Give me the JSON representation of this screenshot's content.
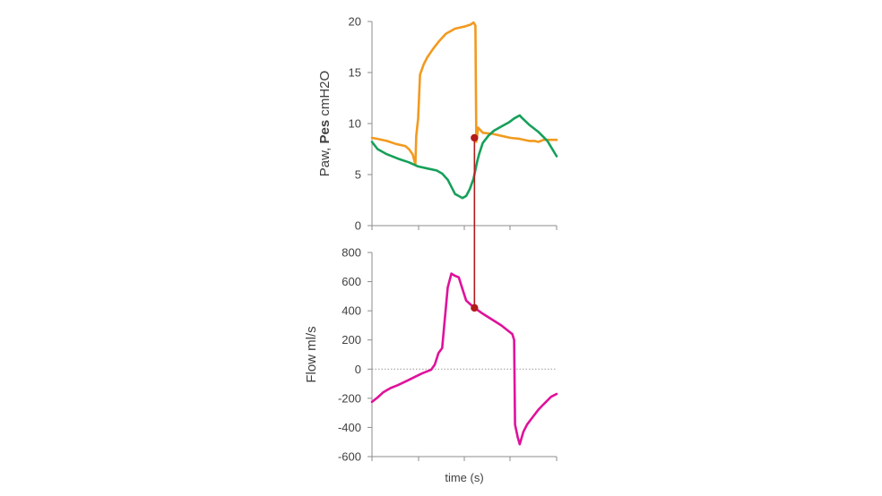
{
  "chart_data": [
    {
      "type": "line",
      "ylabel_parts": [
        {
          "text": "Paw, ",
          "bold": false
        },
        {
          "text": "Pes",
          "bold": true
        },
        {
          "text": " cmH2O",
          "bold": false
        }
      ],
      "ylim": [
        0,
        20
      ],
      "yticks": [
        0,
        5,
        10,
        15,
        20
      ],
      "xlim": [
        0,
        1
      ],
      "grid": false,
      "series": [
        {
          "color": "#F29A1F",
          "points": [
            [
              0.0,
              8.6
            ],
            [
              0.03,
              8.5
            ],
            [
              0.08,
              8.3
            ],
            [
              0.13,
              8.0
            ],
            [
              0.18,
              7.8
            ],
            [
              0.2,
              7.5
            ],
            [
              0.22,
              7.0
            ],
            [
              0.235,
              6.0
            ],
            [
              0.24,
              8.8
            ],
            [
              0.25,
              10.5
            ],
            [
              0.26,
              14.8
            ],
            [
              0.28,
              15.8
            ],
            [
              0.3,
              16.5
            ],
            [
              0.33,
              17.3
            ],
            [
              0.36,
              18.0
            ],
            [
              0.4,
              18.8
            ],
            [
              0.45,
              19.3
            ],
            [
              0.5,
              19.5
            ],
            [
              0.535,
              19.7
            ],
            [
              0.55,
              19.9
            ],
            [
              0.56,
              19.6
            ],
            [
              0.565,
              8.2
            ],
            [
              0.575,
              9.6
            ],
            [
              0.6,
              9.1
            ],
            [
              0.65,
              9.0
            ],
            [
              0.7,
              8.8
            ],
            [
              0.75,
              8.6
            ],
            [
              0.8,
              8.5
            ],
            [
              0.85,
              8.3
            ],
            [
              0.88,
              8.3
            ],
            [
              0.9,
              8.2
            ],
            [
              0.93,
              8.4
            ],
            [
              1.0,
              8.4
            ]
          ]
        },
        {
          "color": "#16A05A",
          "points": [
            [
              0.0,
              8.2
            ],
            [
              0.03,
              7.5
            ],
            [
              0.08,
              7.0
            ],
            [
              0.15,
              6.5
            ],
            [
              0.2,
              6.2
            ],
            [
              0.25,
              5.8
            ],
            [
              0.3,
              5.6
            ],
            [
              0.35,
              5.4
            ],
            [
              0.38,
              5.1
            ],
            [
              0.41,
              4.5
            ],
            [
              0.43,
              3.8
            ],
            [
              0.45,
              3.1
            ],
            [
              0.47,
              2.9
            ],
            [
              0.49,
              2.7
            ],
            [
              0.51,
              2.9
            ],
            [
              0.53,
              3.6
            ],
            [
              0.55,
              4.6
            ],
            [
              0.57,
              6.3
            ],
            [
              0.58,
              7.0
            ],
            [
              0.6,
              8.1
            ],
            [
              0.63,
              8.8
            ],
            [
              0.66,
              9.3
            ],
            [
              0.7,
              9.7
            ],
            [
              0.74,
              10.1
            ],
            [
              0.77,
              10.5
            ],
            [
              0.8,
              10.8
            ],
            [
              0.81,
              10.6
            ],
            [
              0.85,
              9.9
            ],
            [
              0.9,
              9.2
            ],
            [
              0.95,
              8.3
            ],
            [
              1.0,
              6.8
            ]
          ]
        }
      ]
    },
    {
      "type": "line",
      "ylabel": "Flow ml/s",
      "xlabel": "time (s)",
      "ylim": [
        -600,
        800
      ],
      "yticks": [
        800,
        600,
        400,
        200,
        0,
        -200,
        -400,
        -600
      ],
      "xlim": [
        0,
        1
      ],
      "grid": false,
      "zero_line": true,
      "series": [
        {
          "color": "#E0119B",
          "points": [
            [
              0.0,
              -225
            ],
            [
              0.03,
              -195
            ],
            [
              0.06,
              -160
            ],
            [
              0.1,
              -130
            ],
            [
              0.14,
              -110
            ],
            [
              0.19,
              -80
            ],
            [
              0.23,
              -55
            ],
            [
              0.27,
              -30
            ],
            [
              0.3,
              -15
            ],
            [
              0.32,
              -5
            ],
            [
              0.34,
              30
            ],
            [
              0.36,
              110
            ],
            [
              0.38,
              145
            ],
            [
              0.39,
              280
            ],
            [
              0.41,
              560
            ],
            [
              0.43,
              655
            ],
            [
              0.45,
              640
            ],
            [
              0.47,
              630
            ],
            [
              0.49,
              550
            ],
            [
              0.51,
              470
            ],
            [
              0.55,
              425
            ],
            [
              0.6,
              380
            ],
            [
              0.65,
              340
            ],
            [
              0.7,
              300
            ],
            [
              0.74,
              260
            ],
            [
              0.76,
              240
            ],
            [
              0.77,
              200
            ],
            [
              0.775,
              -380
            ],
            [
              0.79,
              -470
            ],
            [
              0.8,
              -515
            ],
            [
              0.82,
              -430
            ],
            [
              0.84,
              -380
            ],
            [
              0.87,
              -330
            ],
            [
              0.9,
              -280
            ],
            [
              0.93,
              -240
            ],
            [
              0.97,
              -190
            ],
            [
              1.0,
              -170
            ]
          ]
        }
      ]
    }
  ],
  "marker_link": {
    "color": "#B31B1B",
    "x": 0.555,
    "top_y": 8.6,
    "bottom_y": 420
  }
}
